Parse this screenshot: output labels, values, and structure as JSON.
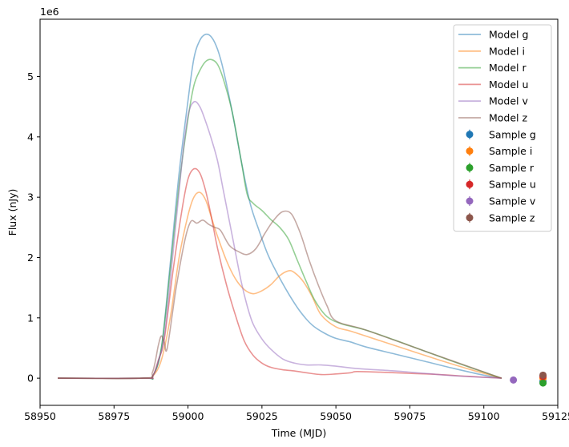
{
  "chart_data": {
    "type": "line",
    "title": "",
    "xlabel": "Time (MJD)",
    "ylabel": "Flux (nJy)",
    "y_offset_label": "1e6",
    "xlim": [
      58950,
      59125
    ],
    "ylim": [
      -0.45,
      5.95
    ],
    "y_scale": 1000000,
    "x_ticks": [
      58950,
      58975,
      59000,
      59025,
      59050,
      59075,
      59100,
      59125
    ],
    "y_ticks": [
      0,
      1,
      2,
      3,
      4,
      5
    ],
    "legend_position": "top-right",
    "grid": false,
    "series": [
      {
        "name": "Model g",
        "kind": "line",
        "color": "#1f77b4",
        "x": [
          58956,
          58985,
          58988,
          58991,
          58994,
          58997,
          59000,
          59002,
          59004,
          59006,
          59008,
          59010,
          59012,
          59015,
          59018,
          59021,
          59024,
          59027,
          59030,
          59034,
          59038,
          59042,
          59046,
          59050,
          59055,
          59060,
          59070,
          59080,
          59090,
          59100,
          59106
        ],
        "y": [
          0,
          0,
          0.03,
          0.5,
          1.9,
          3.4,
          4.6,
          5.3,
          5.6,
          5.7,
          5.65,
          5.45,
          5.1,
          4.4,
          3.6,
          2.9,
          2.45,
          2.05,
          1.75,
          1.4,
          1.1,
          0.88,
          0.75,
          0.66,
          0.6,
          0.52,
          0.4,
          0.28,
          0.16,
          0.05,
          0
        ]
      },
      {
        "name": "Model i",
        "kind": "line",
        "color": "#ff7f0e",
        "x": [
          58956,
          58985,
          58988,
          58991,
          58994,
          58997,
          59000,
          59002,
          59004,
          59006,
          59008,
          59010,
          59013,
          59016,
          59019,
          59022,
          59025,
          59028,
          59031,
          59034,
          59036,
          59039,
          59042,
          59045,
          59050,
          59055,
          59065,
          59075,
          59085,
          59095,
          59106
        ],
        "y": [
          0,
          0,
          0.03,
          0.3,
          1.0,
          2.0,
          2.7,
          3.0,
          3.08,
          2.95,
          2.65,
          2.35,
          1.95,
          1.65,
          1.47,
          1.4,
          1.45,
          1.55,
          1.7,
          1.78,
          1.75,
          1.6,
          1.35,
          1.05,
          0.85,
          0.78,
          0.62,
          0.46,
          0.3,
          0.15,
          0
        ]
      },
      {
        "name": "Model r",
        "kind": "line",
        "color": "#2ca02c",
        "x": [
          58956,
          58985,
          58988,
          58991,
          58994,
          58997,
          59000,
          59002,
          59004,
          59006,
          59008,
          59010,
          59012,
          59015,
          59018,
          59020,
          59022,
          59025,
          59028,
          59031,
          59034,
          59037,
          59040,
          59043,
          59047,
          59052,
          59060,
          59070,
          59080,
          59090,
          59106
        ],
        "y": [
          0,
          0,
          0.03,
          0.5,
          1.8,
          3.2,
          4.3,
          4.85,
          5.1,
          5.25,
          5.28,
          5.2,
          4.95,
          4.4,
          3.6,
          3.05,
          2.9,
          2.78,
          2.63,
          2.5,
          2.3,
          1.95,
          1.6,
          1.28,
          1.02,
          0.9,
          0.8,
          0.63,
          0.45,
          0.27,
          0
        ]
      },
      {
        "name": "Model u",
        "kind": "line",
        "color": "#d62728",
        "x": [
          58956,
          58985,
          58988,
          58990,
          58992,
          58995,
          58998,
          59000,
          59002,
          59004,
          59006,
          59008,
          59010,
          59013,
          59016,
          59019,
          59022,
          59025,
          59028,
          59032,
          59036,
          59040,
          59045,
          59050,
          59055,
          59057,
          59065,
          59075,
          59085,
          59095,
          59106
        ],
        "y": [
          0,
          0,
          0.03,
          0.3,
          0.65,
          1.8,
          2.8,
          3.3,
          3.47,
          3.4,
          3.1,
          2.65,
          2.15,
          1.55,
          1.05,
          0.62,
          0.38,
          0.25,
          0.18,
          0.14,
          0.12,
          0.09,
          0.06,
          0.07,
          0.09,
          0.11,
          0.1,
          0.08,
          0.06,
          0.03,
          0
        ]
      },
      {
        "name": "Model v",
        "kind": "line",
        "color": "#9467bd",
        "x": [
          58956,
          58985,
          58988,
          58990,
          58992,
          58995,
          58998,
          59000,
          59002,
          59004,
          59006,
          59008,
          59010,
          59012,
          59015,
          59018,
          59020,
          59022,
          59025,
          59028,
          59032,
          59036,
          59040,
          59045,
          59050,
          59055,
          59060,
          59070,
          59080,
          59090,
          59106
        ],
        "y": [
          0,
          0,
          0.03,
          0.3,
          0.7,
          2.1,
          3.6,
          4.35,
          4.58,
          4.5,
          4.25,
          3.95,
          3.6,
          3.1,
          2.35,
          1.6,
          1.2,
          0.9,
          0.65,
          0.48,
          0.32,
          0.25,
          0.22,
          0.22,
          0.2,
          0.17,
          0.15,
          0.12,
          0.08,
          0.04,
          0
        ]
      },
      {
        "name": "Model z",
        "kind": "line",
        "color": "#8c564b",
        "x": [
          58956,
          58985,
          58988,
          58990,
          58991,
          58992,
          58993,
          58996,
          58999,
          59001,
          59003,
          59005,
          59007,
          59009,
          59011,
          59014,
          59017,
          59020,
          59023,
          59026,
          59029,
          59032,
          59035,
          59038,
          59041,
          59044,
          59047,
          59050,
          59060,
          59080,
          59106
        ],
        "y": [
          0,
          0,
          0.1,
          0.55,
          0.7,
          0.6,
          0.5,
          1.5,
          2.3,
          2.6,
          2.57,
          2.62,
          2.55,
          2.5,
          2.45,
          2.2,
          2.1,
          2.05,
          2.15,
          2.4,
          2.62,
          2.76,
          2.72,
          2.4,
          1.95,
          1.55,
          1.2,
          0.95,
          0.8,
          0.45,
          0
        ]
      },
      {
        "name": "Sample g",
        "kind": "point",
        "color": "#1f77b4",
        "x": [
          59120
        ],
        "y": [
          -0.05
        ]
      },
      {
        "name": "Sample i",
        "kind": "point",
        "color": "#ff7f0e",
        "x": [
          59120
        ],
        "y": [
          0.0
        ]
      },
      {
        "name": "Sample r",
        "kind": "point",
        "color": "#2ca02c",
        "x": [
          59120
        ],
        "y": [
          -0.08
        ]
      },
      {
        "name": "Sample u",
        "kind": "point",
        "color": "#d62728",
        "x": [
          59120
        ],
        "y": [
          0.03
        ]
      },
      {
        "name": "Sample v",
        "kind": "point",
        "color": "#9467bd",
        "x": [
          59110
        ],
        "y": [
          -0.03
        ]
      },
      {
        "name": "Sample z",
        "kind": "point",
        "color": "#8c564b",
        "x": [
          59120
        ],
        "y": [
          0.05
        ]
      }
    ]
  }
}
